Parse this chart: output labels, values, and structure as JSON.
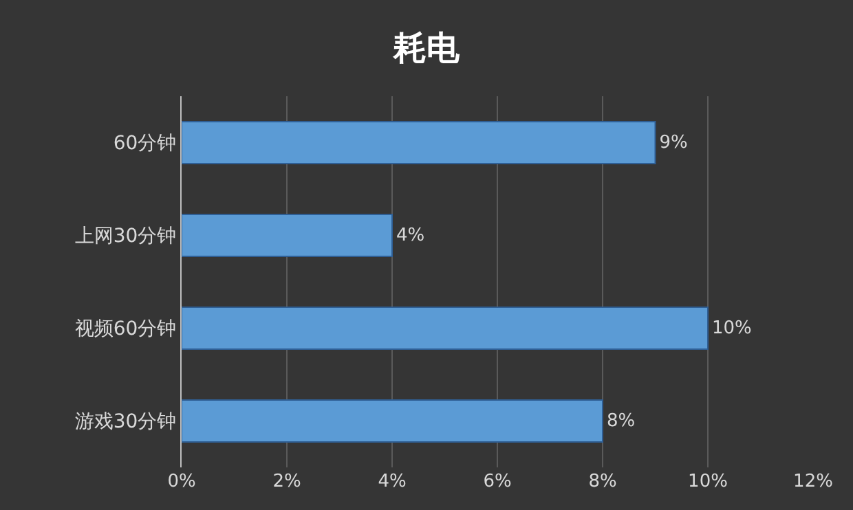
{
  "chart_data": {
    "type": "bar",
    "orientation": "horizontal",
    "title": "耗电",
    "categories": [
      "60分钟",
      "上网30分钟",
      "视频60分钟",
      "游戏30分钟"
    ],
    "values": [
      9,
      4,
      10,
      8
    ],
    "value_labels": [
      "9%",
      "4%",
      "10%",
      "8%"
    ],
    "color": "#5b9bd5",
    "xlim": [
      0,
      12
    ],
    "xticks": [
      {
        "value": 0,
        "label": "0%"
      },
      {
        "value": 2,
        "label": "2%"
      },
      {
        "value": 4,
        "label": "4%"
      },
      {
        "value": 6,
        "label": "6%"
      },
      {
        "value": 8,
        "label": "8%"
      },
      {
        "value": 10,
        "label": "10%"
      },
      {
        "value": 12,
        "label": "12%"
      }
    ],
    "grid": "x"
  }
}
